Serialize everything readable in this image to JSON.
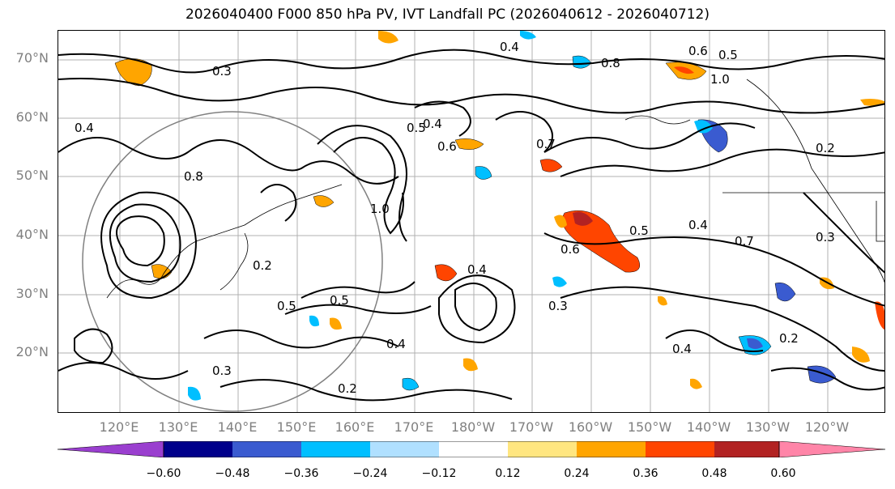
{
  "title": "2026040400 F000 850 hPa PV, IVT Landfall PC (2026040612 - 2026040712)",
  "map": {
    "lat_labels": [
      "70°N",
      "60°N",
      "50°N",
      "40°N",
      "30°N",
      "20°N"
    ],
    "lon_labels": [
      "120°E",
      "130°E",
      "140°E",
      "150°E",
      "160°E",
      "170°E",
      "180°W",
      "170°W",
      "160°W",
      "150°W",
      "140°W",
      "130°W",
      "120°W"
    ],
    "contour_labels": [
      "0.4",
      "0.6",
      "0.5",
      "0.8",
      "1.0",
      "0.7",
      "0.2",
      "0.3",
      "0.4",
      "0.5",
      "0.6",
      "0.4",
      "0.3",
      "0.4",
      "0.2",
      "0.5",
      "0.7",
      "0.3",
      "0.2",
      "0.4",
      "0.6",
      "0.4",
      "0.8",
      "0.5",
      "1.0",
      "0.4",
      "0.5",
      "0.2",
      "0.3"
    ],
    "shading_colors": [
      "#9a3fcf",
      "#00008b",
      "#3a5bd0",
      "#00bfff",
      "#b0e0ff",
      "#ffffff",
      "#ffe680",
      "#ffa500",
      "#ff4500",
      "#b22222",
      "#ff85a8"
    ]
  },
  "colorbar": {
    "ticks": [
      "−0.60",
      "−0.48",
      "−0.36",
      "−0.24",
      "−0.12",
      "0.12",
      "0.24",
      "0.36",
      "0.48",
      "0.60"
    ],
    "colors": [
      "#9a3fcf",
      "#00008b",
      "#3a5bd0",
      "#00bfff",
      "#b0e0ff",
      "#ffffff",
      "#ffe680",
      "#ffa500",
      "#ff4500",
      "#b22222",
      "#ff85a8"
    ]
  }
}
